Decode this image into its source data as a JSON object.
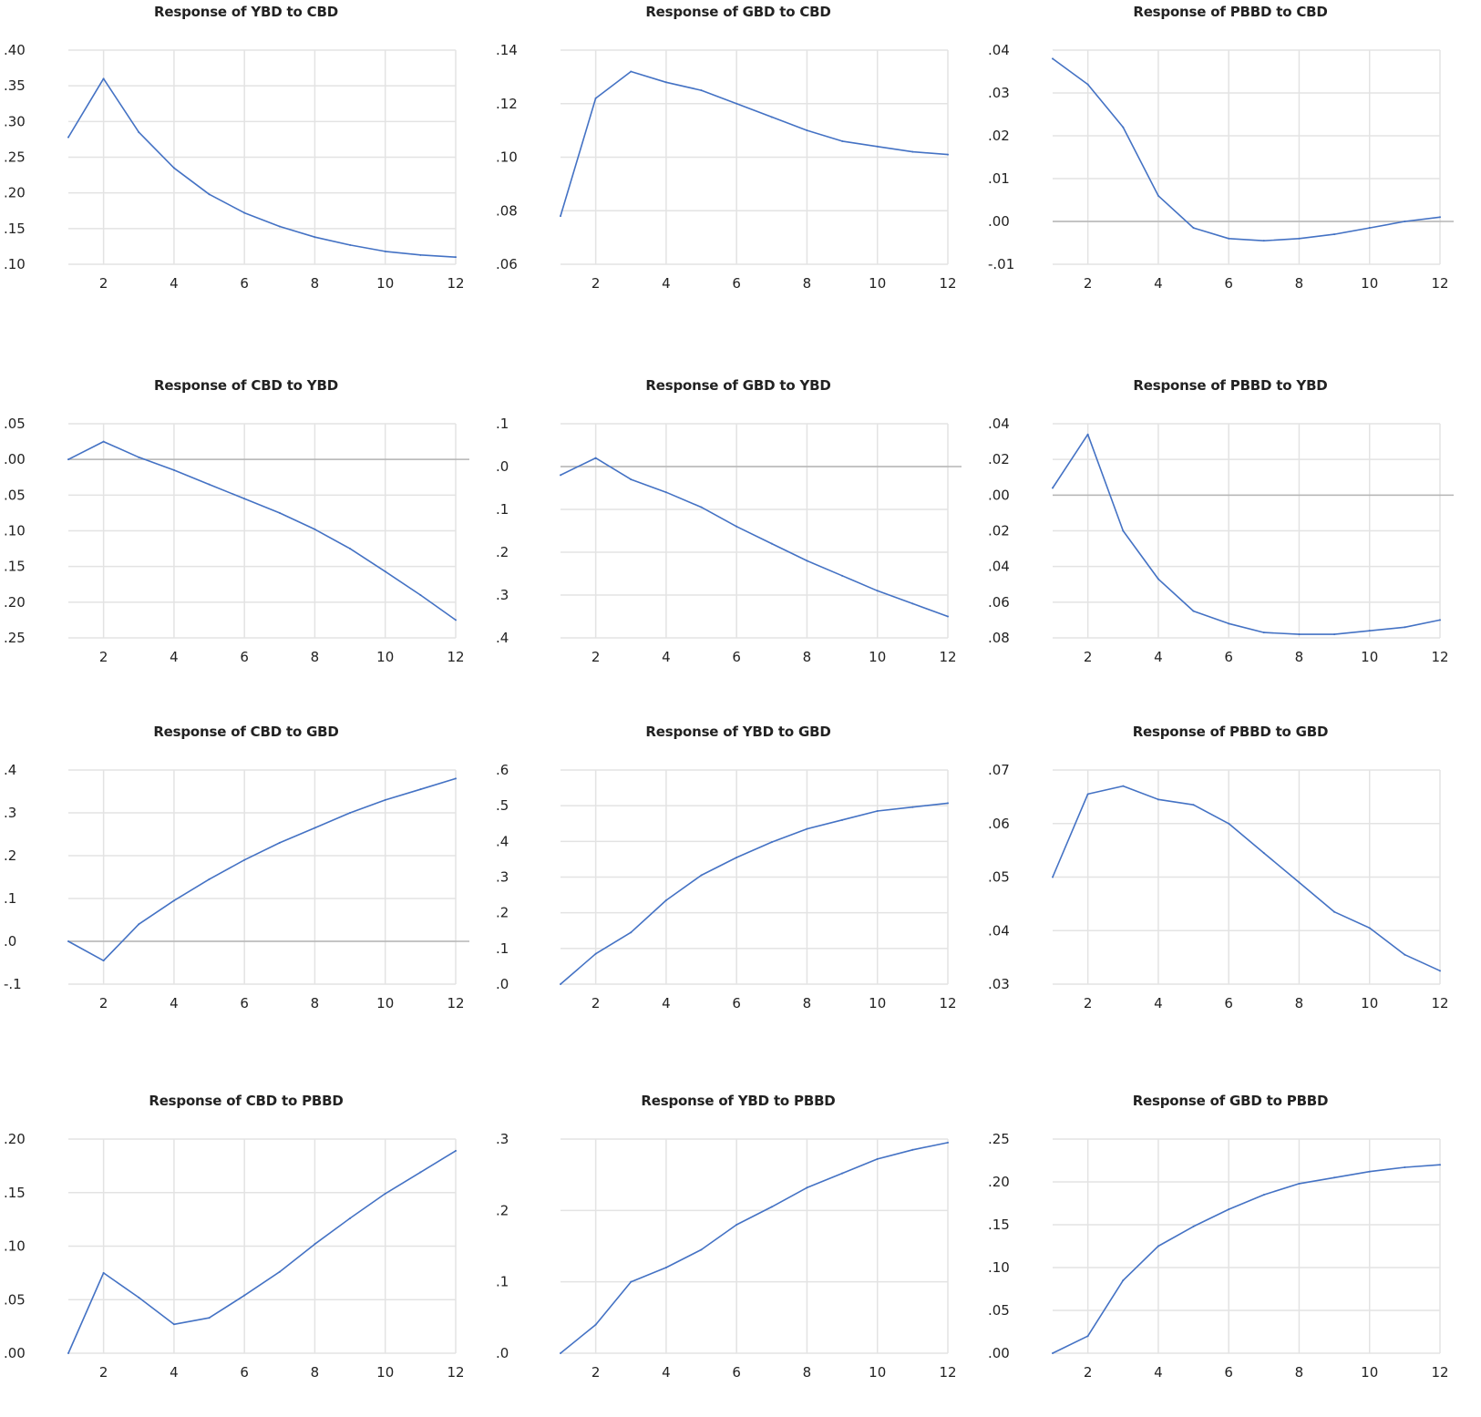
{
  "line_color": "#4472c4",
  "grid_color": "#e3e3e3",
  "zero_color": "#b5b5b5",
  "chart_data": [
    {
      "type": "line",
      "title": "Response of YBD to CBD",
      "x": [
        1,
        2,
        3,
        4,
        5,
        6,
        7,
        8,
        9,
        10,
        11,
        12
      ],
      "values": [
        0.278,
        0.36,
        0.285,
        0.235,
        0.198,
        0.172,
        0.153,
        0.138,
        0.127,
        0.118,
        0.113,
        0.11
      ],
      "ylim": [
        0.1,
        0.4
      ],
      "yticks": [
        0.1,
        0.15,
        0.2,
        0.25,
        0.3,
        0.35,
        0.4
      ],
      "ytick_labels": [
        ".10",
        ".15",
        ".20",
        ".25",
        ".30",
        ".35",
        ".40"
      ],
      "xtick_labels": [
        "2",
        "4",
        "6",
        "8",
        "10",
        "12"
      ],
      "zero_line": false
    },
    {
      "type": "line",
      "title": "Response of GBD to CBD",
      "x": [
        1,
        2,
        3,
        4,
        5,
        6,
        7,
        8,
        9,
        10,
        11,
        12
      ],
      "values": [
        0.078,
        0.122,
        0.132,
        0.128,
        0.125,
        0.12,
        0.115,
        0.11,
        0.106,
        0.104,
        0.102,
        0.101
      ],
      "ylim": [
        0.06,
        0.14
      ],
      "yticks": [
        0.06,
        0.08,
        0.1,
        0.12,
        0.14
      ],
      "ytick_labels": [
        ".06",
        ".08",
        ".10",
        ".12",
        ".14"
      ],
      "xtick_labels": [
        "2",
        "4",
        "6",
        "8",
        "10",
        "12"
      ],
      "zero_line": false
    },
    {
      "type": "line",
      "title": "Response of PBBD to CBD",
      "x": [
        1,
        2,
        3,
        4,
        5,
        6,
        7,
        8,
        9,
        10,
        11,
        12
      ],
      "values": [
        0.038,
        0.032,
        0.022,
        0.006,
        -0.0015,
        -0.004,
        -0.0045,
        -0.004,
        -0.003,
        -0.0015,
        0.0,
        0.001
      ],
      "ylim": [
        -0.01,
        0.04
      ],
      "yticks": [
        -0.01,
        0.0,
        0.01,
        0.02,
        0.03,
        0.04
      ],
      "ytick_labels": [
        "-.01",
        ".00",
        ".01",
        ".02",
        ".03",
        ".04"
      ],
      "xtick_labels": [
        "2",
        "4",
        "6",
        "8",
        "10",
        "12"
      ],
      "zero_line": true
    },
    {
      "type": "line",
      "title": "Response of CBD to YBD",
      "x": [
        1,
        2,
        3,
        4,
        5,
        6,
        7,
        8,
        9,
        10,
        11,
        12
      ],
      "values": [
        0.0,
        0.025,
        0.003,
        -0.015,
        -0.035,
        -0.055,
        -0.075,
        -0.098,
        -0.125,
        -0.157,
        -0.19,
        -0.225
      ],
      "ylim": [
        -0.25,
        0.05
      ],
      "yticks": [
        -0.25,
        -0.2,
        -0.15,
        -0.1,
        -0.05,
        0.0,
        0.05
      ],
      "ytick_labels": [
        ".25",
        ".20",
        ".15",
        ".10",
        ".05",
        ".00",
        ".05"
      ],
      "xtick_labels": [
        "2",
        "4",
        "6",
        "8",
        "10",
        "12"
      ],
      "zero_line": true
    },
    {
      "type": "line",
      "title": "Response of GBD to YBD",
      "x": [
        1,
        2,
        3,
        4,
        5,
        6,
        7,
        8,
        9,
        10,
        11,
        12
      ],
      "values": [
        -0.02,
        0.02,
        -0.03,
        -0.06,
        -0.095,
        -0.14,
        -0.18,
        -0.22,
        -0.255,
        -0.29,
        -0.32,
        -0.35
      ],
      "ylim": [
        -0.4,
        0.1
      ],
      "yticks": [
        -0.4,
        -0.3,
        -0.2,
        -0.1,
        0.0,
        0.1
      ],
      "ytick_labels": [
        ".4",
        ".3",
        ".2",
        ".1",
        ".0",
        ".1"
      ],
      "xtick_labels": [
        "2",
        "4",
        "6",
        "8",
        "10",
        "12"
      ],
      "zero_line": true
    },
    {
      "type": "line",
      "title": "Response of PBBD to YBD",
      "x": [
        1,
        2,
        3,
        4,
        5,
        6,
        7,
        8,
        9,
        10,
        11,
        12
      ],
      "values": [
        0.004,
        0.034,
        -0.02,
        -0.047,
        -0.065,
        -0.072,
        -0.077,
        -0.078,
        -0.078,
        -0.076,
        -0.074,
        -0.07
      ],
      "ylim": [
        -0.08,
        0.04
      ],
      "yticks": [
        -0.08,
        -0.06,
        -0.04,
        -0.02,
        0.0,
        0.02,
        0.04
      ],
      "ytick_labels": [
        ".08",
        ".06",
        ".04",
        ".02",
        ".00",
        ".02",
        ".04"
      ],
      "xtick_labels": [
        "2",
        "4",
        "6",
        "8",
        "10",
        "12"
      ],
      "zero_line": true
    },
    {
      "type": "line",
      "title": "Response of CBD to GBD",
      "x": [
        1,
        2,
        3,
        4,
        5,
        6,
        7,
        8,
        9,
        10,
        11,
        12
      ],
      "values": [
        0.0,
        -0.045,
        0.04,
        0.095,
        0.145,
        0.19,
        0.23,
        0.265,
        0.3,
        0.33,
        0.355,
        0.38
      ],
      "ylim": [
        -0.1,
        0.4
      ],
      "yticks": [
        -0.1,
        0.0,
        0.1,
        0.2,
        0.3,
        0.4
      ],
      "ytick_labels": [
        "-.1",
        ".0",
        ".1",
        ".2",
        ".3",
        ".4"
      ],
      "xtick_labels": [
        "2",
        "4",
        "6",
        "8",
        "10",
        "12"
      ],
      "zero_line": true
    },
    {
      "type": "line",
      "title": "Response of YBD to GBD",
      "x": [
        1,
        2,
        3,
        4,
        5,
        6,
        7,
        8,
        9,
        10,
        11,
        12
      ],
      "values": [
        0.0,
        0.085,
        0.145,
        0.235,
        0.305,
        0.355,
        0.398,
        0.435,
        0.46,
        0.485,
        0.496,
        0.507
      ],
      "ylim": [
        0.0,
        0.6
      ],
      "yticks": [
        0.0,
        0.1,
        0.2,
        0.3,
        0.4,
        0.5,
        0.6
      ],
      "ytick_labels": [
        ".0",
        ".1",
        ".2",
        ".3",
        ".4",
        ".5",
        ".6"
      ],
      "xtick_labels": [
        "2",
        "4",
        "6",
        "8",
        "10",
        "12"
      ],
      "zero_line": false
    },
    {
      "type": "line",
      "title": "Response of PBBD to GBD",
      "x": [
        1,
        2,
        3,
        4,
        5,
        6,
        7,
        8,
        9,
        10,
        11,
        12
      ],
      "values": [
        0.05,
        0.0655,
        0.067,
        0.0645,
        0.0635,
        0.06,
        0.0545,
        0.049,
        0.0435,
        0.0405,
        0.0355,
        0.0325
      ],
      "ylim": [
        0.03,
        0.07
      ],
      "yticks": [
        0.03,
        0.04,
        0.05,
        0.06,
        0.07
      ],
      "ytick_labels": [
        ".03",
        ".04",
        ".05",
        ".06",
        ".07"
      ],
      "xtick_labels": [
        "2",
        "4",
        "6",
        "8",
        "10",
        "12"
      ],
      "zero_line": false
    },
    {
      "type": "line",
      "title": "Response of CBD to PBBD",
      "x": [
        1,
        2,
        3,
        4,
        5,
        6,
        7,
        8,
        9,
        10,
        11,
        12
      ],
      "values": [
        0.0,
        0.075,
        0.052,
        0.027,
        0.033,
        0.054,
        0.076,
        0.102,
        0.126,
        0.149,
        0.169,
        0.189
      ],
      "ylim": [
        0.0,
        0.2
      ],
      "yticks": [
        0.0,
        0.05,
        0.1,
        0.15,
        0.2
      ],
      "ytick_labels": [
        ".00",
        ".05",
        ".10",
        ".15",
        ".20"
      ],
      "xtick_labels": [
        "2",
        "4",
        "6",
        "8",
        "10",
        "12"
      ],
      "zero_line": false
    },
    {
      "type": "line",
      "title": "Response of YBD to PBBD",
      "x": [
        1,
        2,
        3,
        4,
        5,
        6,
        7,
        8,
        9,
        10,
        11,
        12
      ],
      "values": [
        0.0,
        0.04,
        0.1,
        0.12,
        0.145,
        0.18,
        0.205,
        0.232,
        0.252,
        0.272,
        0.285,
        0.295
      ],
      "ylim": [
        0.0,
        0.3
      ],
      "yticks": [
        0.0,
        0.1,
        0.2,
        0.3
      ],
      "ytick_labels": [
        ".0",
        ".1",
        ".2",
        ".3"
      ],
      "xtick_labels": [
        "2",
        "4",
        "6",
        "8",
        "10",
        "12"
      ],
      "zero_line": false
    },
    {
      "type": "line",
      "title": "Response of GBD to PBBD",
      "x": [
        1,
        2,
        3,
        4,
        5,
        6,
        7,
        8,
        9,
        10,
        11,
        12
      ],
      "values": [
        0.0,
        0.02,
        0.085,
        0.125,
        0.148,
        0.168,
        0.185,
        0.198,
        0.205,
        0.212,
        0.217,
        0.22
      ],
      "ylim": [
        0.0,
        0.25
      ],
      "yticks": [
        0.0,
        0.05,
        0.1,
        0.15,
        0.2,
        0.25
      ],
      "ytick_labels": [
        ".00",
        ".05",
        ".10",
        ".15",
        ".20",
        ".25"
      ],
      "xtick_labels": [
        "2",
        "4",
        "6",
        "8",
        "10",
        "12"
      ],
      "zero_line": false
    }
  ]
}
